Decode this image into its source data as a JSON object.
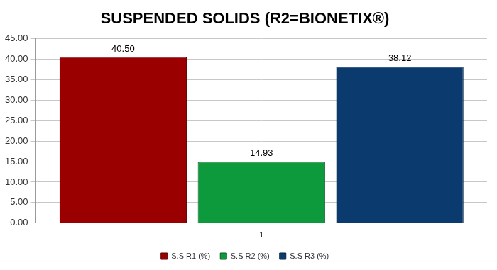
{
  "chart_data": {
    "type": "bar",
    "title": "SUSPENDED SOLIDS (R2=BIONETIX®)",
    "categories": [
      "1"
    ],
    "series": [
      {
        "name": "S.S R1 (%)",
        "color": "#9b0000",
        "values": [
          40.5
        ],
        "value_labels": [
          "40.50"
        ]
      },
      {
        "name": "S.S R2 (%)",
        "color": "#0c9a3c",
        "values": [
          14.93
        ],
        "value_labels": [
          "14.93"
        ]
      },
      {
        "name": "S.S R3 (%)",
        "color": "#0b3a6e",
        "values": [
          38.12
        ],
        "value_labels": [
          "38.12"
        ]
      }
    ],
    "ylim": [
      0,
      45
    ],
    "yticks": [
      {
        "value": 0,
        "label": "0.00"
      },
      {
        "value": 5,
        "label": "5.00"
      },
      {
        "value": 10,
        "label": "10.00"
      },
      {
        "value": 15,
        "label": "15.00"
      },
      {
        "value": 20,
        "label": "20.00"
      },
      {
        "value": 25,
        "label": "25.00"
      },
      {
        "value": 30,
        "label": "30.00"
      },
      {
        "value": 35,
        "label": "35.00"
      },
      {
        "value": 40,
        "label": "40.00"
      },
      {
        "value": 45,
        "label": "45.00"
      }
    ],
    "grid": true,
    "legend": "bottom",
    "data_labels": true
  }
}
